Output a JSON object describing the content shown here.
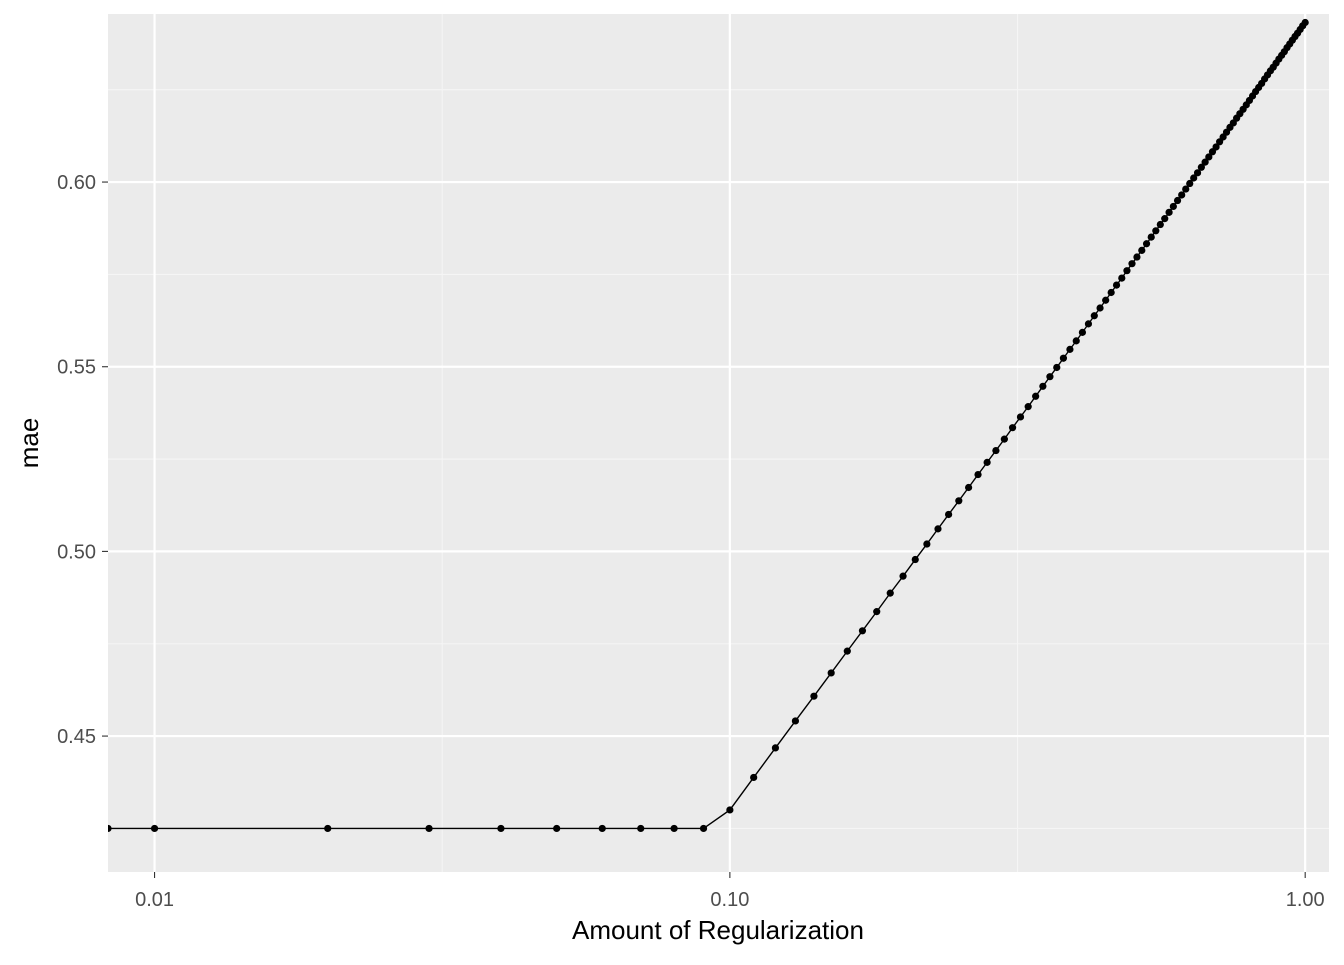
{
  "chart_data": {
    "type": "line",
    "xlabel": "Amount of Regularization",
    "ylabel": "mae",
    "x_scale": "log10",
    "x_range": [
      0.0083,
      1.1
    ],
    "y_range": [
      0.4132,
      0.6455
    ],
    "grid": true,
    "legend": "none",
    "x_ticks": [
      {
        "value": 0.01,
        "label": "0.01"
      },
      {
        "value": 0.1,
        "label": "0.10"
      },
      {
        "value": 1.0,
        "label": "1.00"
      }
    ],
    "y_ticks": [
      {
        "value": 0.45,
        "label": "0.45"
      },
      {
        "value": 0.5,
        "label": "0.50"
      },
      {
        "value": 0.55,
        "label": "0.55"
      },
      {
        "value": 0.6,
        "label": "0.60"
      }
    ],
    "series": [
      {
        "x": [
          0.0083,
          0.01,
          0.02,
          0.03,
          0.04,
          0.05,
          0.06,
          0.07,
          0.08,
          0.09,
          0.1,
          0.11,
          0.12,
          0.13,
          0.14,
          0.15,
          0.16,
          0.17,
          0.18,
          0.19,
          0.2,
          0.21,
          0.22,
          0.23,
          0.24,
          0.25,
          0.26,
          0.27,
          0.28,
          0.29,
          0.3,
          0.31,
          0.32,
          0.33,
          0.34,
          0.35,
          0.36,
          0.37,
          0.38,
          0.39,
          0.4,
          0.41,
          0.42,
          0.43,
          0.44,
          0.45,
          0.46,
          0.47,
          0.48,
          0.49,
          0.5,
          0.51,
          0.52,
          0.53,
          0.54,
          0.55,
          0.56,
          0.57,
          0.58,
          0.59,
          0.6,
          0.61,
          0.62,
          0.63,
          0.64,
          0.65,
          0.66,
          0.67,
          0.68,
          0.69,
          0.7,
          0.71,
          0.72,
          0.73,
          0.74,
          0.75,
          0.76,
          0.77,
          0.78,
          0.79,
          0.8,
          0.81,
          0.82,
          0.83,
          0.84,
          0.85,
          0.86,
          0.87,
          0.88,
          0.89,
          0.9,
          0.91,
          0.92,
          0.93,
          0.94,
          0.95,
          0.96,
          0.97,
          0.98,
          0.99,
          1.0
        ],
        "y": [
          0.425,
          0.425,
          0.425,
          0.425,
          0.425,
          0.425,
          0.425,
          0.425,
          0.425,
          0.425,
          0.43,
          0.4388,
          0.4468,
          0.4541,
          0.4608,
          0.4671,
          0.473,
          0.4785,
          0.4837,
          0.4887,
          0.4933,
          0.4978,
          0.502,
          0.5061,
          0.51,
          0.5137,
          0.5173,
          0.5208,
          0.5241,
          0.5273,
          0.5304,
          0.5335,
          0.5364,
          0.5392,
          0.542,
          0.5447,
          0.5473,
          0.5498,
          0.5523,
          0.5547,
          0.557,
          0.5593,
          0.5616,
          0.5638,
          0.5659,
          0.568,
          0.5701,
          0.5721,
          0.574,
          0.576,
          0.5779,
          0.5797,
          0.5815,
          0.5833,
          0.5851,
          0.5868,
          0.5885,
          0.5901,
          0.5918,
          0.5934,
          0.595,
          0.5965,
          0.5981,
          0.5996,
          0.6011,
          0.6025,
          0.604,
          0.6054,
          0.6068,
          0.6082,
          0.6095,
          0.6109,
          0.6122,
          0.6135,
          0.6148,
          0.616,
          0.6173,
          0.6185,
          0.6197,
          0.6209,
          0.6221,
          0.6233,
          0.6245,
          0.6256,
          0.6267,
          0.6279,
          0.629,
          0.6301,
          0.6311,
          0.6322,
          0.6333,
          0.6343,
          0.6353,
          0.6364,
          0.6374,
          0.6384,
          0.6394,
          0.6403,
          0.6413,
          0.6423,
          0.6432
        ]
      }
    ]
  },
  "colors": {
    "panel": "#ebebeb",
    "grid_major": "#ffffff",
    "grid_minor": "#f5f5f5",
    "line": "#000000",
    "point": "#000000",
    "tick_text": "#4d4d4d",
    "axis_title": "#000000",
    "tick_mark": "#333333"
  }
}
